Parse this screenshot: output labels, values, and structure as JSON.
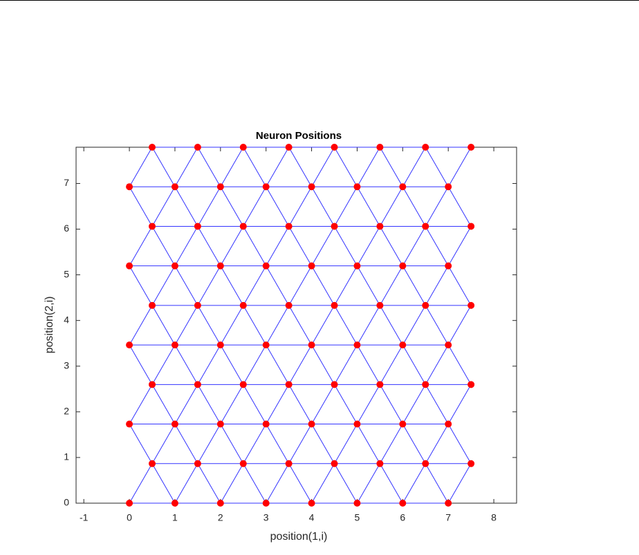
{
  "chart_data": {
    "type": "scatter",
    "title": "Neuron Positions",
    "x_label": "position(1,i)",
    "y_label": "position(2,i)",
    "x": [
      0,
      1,
      2,
      3,
      4,
      5,
      6,
      7,
      0.5,
      1.5,
      2.5,
      3.5,
      4.5,
      5.5,
      6.5,
      7.5,
      0,
      1,
      2,
      3,
      4,
      5,
      6,
      7,
      0.5,
      1.5,
      2.5,
      3.5,
      4.5,
      5.5,
      6.5,
      7.5,
      0,
      1,
      2,
      3,
      4,
      5,
      6,
      7,
      0.5,
      1.5,
      2.5,
      3.5,
      4.5,
      5.5,
      6.5,
      7.5,
      0,
      1,
      2,
      3,
      4,
      5,
      6,
      7,
      0.5,
      1.5,
      2.5,
      3.5,
      4.5,
      5.5,
      6.5,
      7.5,
      0,
      1,
      2,
      3,
      4,
      5,
      6,
      7,
      0.5,
      1.5,
      2.5,
      3.5,
      4.5,
      5.5,
      6.5,
      7.5
    ],
    "y": [
      0,
      0,
      0,
      0,
      0,
      0,
      0,
      0,
      0.866,
      0.866,
      0.866,
      0.866,
      0.866,
      0.866,
      0.866,
      0.866,
      1.732,
      1.732,
      1.732,
      1.732,
      1.732,
      1.732,
      1.732,
      1.732,
      2.598,
      2.598,
      2.598,
      2.598,
      2.598,
      2.598,
      2.598,
      2.598,
      3.464,
      3.464,
      3.464,
      3.464,
      3.464,
      3.464,
      3.464,
      3.464,
      4.33,
      4.33,
      4.33,
      4.33,
      4.33,
      4.33,
      4.33,
      4.33,
      5.196,
      5.196,
      5.196,
      5.196,
      5.196,
      5.196,
      5.196,
      5.196,
      6.062,
      6.062,
      6.062,
      6.062,
      6.062,
      6.062,
      6.062,
      6.062,
      6.928,
      6.928,
      6.928,
      6.928,
      6.928,
      6.928,
      6.928,
      6.928,
      7.794,
      7.794,
      7.794,
      7.794,
      7.794,
      7.794,
      7.794,
      7.794
    ],
    "color": "#ff0000",
    "link_color": "#3333ff",
    "xlim": [
      -1.17,
      8.5
    ],
    "ylim": [
      0,
      7.794
    ],
    "xticks": [
      -1,
      0,
      1,
      2,
      3,
      4,
      5,
      6,
      7,
      8
    ],
    "yticks": [
      0,
      1,
      2,
      3,
      4,
      5,
      6,
      7
    ]
  }
}
